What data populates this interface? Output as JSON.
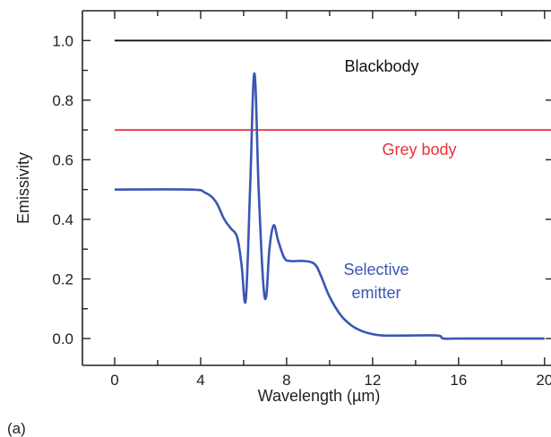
{
  "chart_data": {
    "type": "line",
    "xlabel": "Wavelength (µm)",
    "ylabel": "Emissivity",
    "panel_label": "(a)",
    "xlim": [
      -1.5,
      20.3
    ],
    "ylim": [
      -0.09,
      1.1
    ],
    "x_ticks": [
      0,
      4,
      8,
      12,
      16,
      20
    ],
    "x_tick_labels": [
      "0",
      "4",
      "8",
      "12",
      "16",
      "20"
    ],
    "y_ticks": [
      0.0,
      0.2,
      0.4,
      0.6,
      0.8,
      1.0
    ],
    "y_tick_labels": [
      "0.0",
      "0.2",
      "0.4",
      "0.6",
      "0.8",
      "1.0"
    ],
    "grid": false,
    "legend": "none",
    "series": [
      {
        "name": "Blackbody",
        "color": "#111111",
        "x": [
          0,
          20.3
        ],
        "y": [
          1.0,
          1.0
        ]
      },
      {
        "name": "Grey body",
        "color": "#e8333a",
        "x": [
          0,
          20.3
        ],
        "y": [
          0.7,
          0.7
        ]
      },
      {
        "name": "Selective emitter",
        "color": "#3a55b4",
        "x": [
          0,
          3.5,
          4.2,
          4.7,
          5.1,
          5.4,
          5.7,
          5.9,
          6.1,
          6.3,
          6.5,
          6.7,
          6.9,
          7.05,
          7.2,
          7.4,
          7.6,
          7.9,
          8.2,
          8.8,
          9.3,
          9.6,
          10.0,
          10.5,
          11.0,
          11.5,
          12.0,
          12.5,
          13.5,
          15.0,
          15.3,
          16.0,
          18.0,
          20.0
        ],
        "y": [
          0.5,
          0.5,
          0.49,
          0.46,
          0.4,
          0.37,
          0.34,
          0.25,
          0.13,
          0.5,
          0.89,
          0.5,
          0.2,
          0.14,
          0.3,
          0.38,
          0.33,
          0.27,
          0.26,
          0.26,
          0.25,
          0.21,
          0.14,
          0.08,
          0.045,
          0.025,
          0.015,
          0.01,
          0.01,
          0.01,
          0.0,
          0.0,
          0.0,
          0.0
        ]
      }
    ],
    "annotations": [
      {
        "text": "Blackbody",
        "color": "#111111"
      },
      {
        "text": "Grey body",
        "color": "#e8333a"
      },
      {
        "text_lines": [
          "Selective",
          "emitter"
        ],
        "color": "#3a55b4"
      }
    ]
  }
}
